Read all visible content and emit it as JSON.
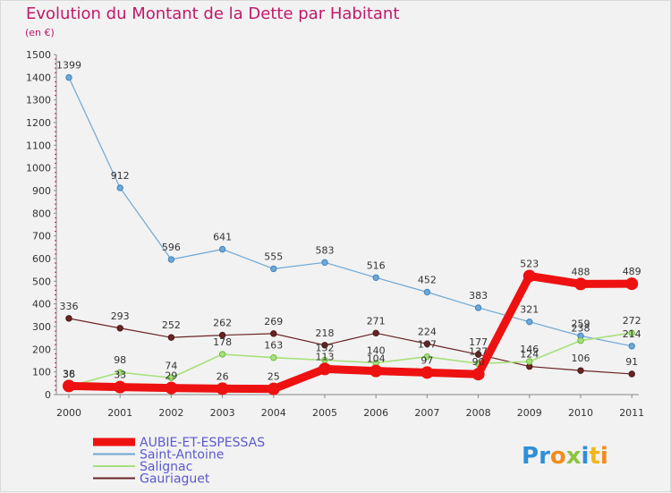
{
  "title": "Evolution du Montant de la Dette par Habitant",
  "subtitle": "(en €)",
  "brand": {
    "letters": [
      "P",
      "r",
      "o",
      "x",
      "i",
      "t",
      "i"
    ],
    "colors": [
      "#2f8fd6",
      "#2f8fd6",
      "#f28c1e",
      "#8dc63f",
      "#2f8fd6",
      "#f2b51e",
      "#f28c1e"
    ]
  },
  "chart_data": {
    "type": "line",
    "x": [
      "2000",
      "2001",
      "2002",
      "2003",
      "2004",
      "2005",
      "2006",
      "2007",
      "2008",
      "2009",
      "2010",
      "2011"
    ],
    "ylim": [
      0,
      1500
    ],
    "yticks": [
      0,
      100,
      200,
      300,
      400,
      500,
      600,
      700,
      800,
      900,
      1000,
      1100,
      1200,
      1300,
      1400,
      1500
    ],
    "grid": false,
    "legend_position": "bottom-left",
    "series": [
      {
        "name": "AUBIE-ET-ESPESSAS",
        "color": "#ee1111",
        "width": 9,
        "values": [
          38,
          33,
          29,
          26,
          25,
          113,
          104,
          97,
          90,
          523,
          488,
          489
        ],
        "labels": [
          "38",
          "33",
          "29",
          "26",
          "25",
          "113",
          "104",
          "97",
          "90",
          "523",
          "488",
          "489"
        ]
      },
      {
        "name": "Saint-Antoine",
        "color": "#6fa7d4",
        "width": 1.2,
        "values": [
          1399,
          912,
          596,
          641,
          555,
          583,
          516,
          452,
          383,
          321,
          259,
          214
        ],
        "labels": [
          "1399",
          "912",
          "596",
          "641",
          "555",
          "583",
          "516",
          "452",
          "383",
          "321",
          "259",
          "214"
        ]
      },
      {
        "name": "Salignac",
        "color": "#a7e07c",
        "width": 1.6,
        "values": [
          36,
          98,
          74,
          178,
          163,
          152,
          140,
          167,
          137,
          146,
          238,
          272
        ],
        "labels": [
          "36",
          "98",
          "74",
          "178",
          "163",
          "152",
          "140",
          "167",
          "137",
          "146",
          "238",
          "272"
        ]
      },
      {
        "name": "Gauriaguet",
        "color": "#6a2424",
        "width": 1.2,
        "values": [
          336,
          293,
          252,
          262,
          269,
          218,
          271,
          224,
          177,
          124,
          106,
          91
        ],
        "labels": [
          "336",
          "293",
          "252",
          "262",
          "269",
          "218",
          "271",
          "224",
          "177",
          "124",
          "106",
          "91"
        ]
      }
    ]
  }
}
